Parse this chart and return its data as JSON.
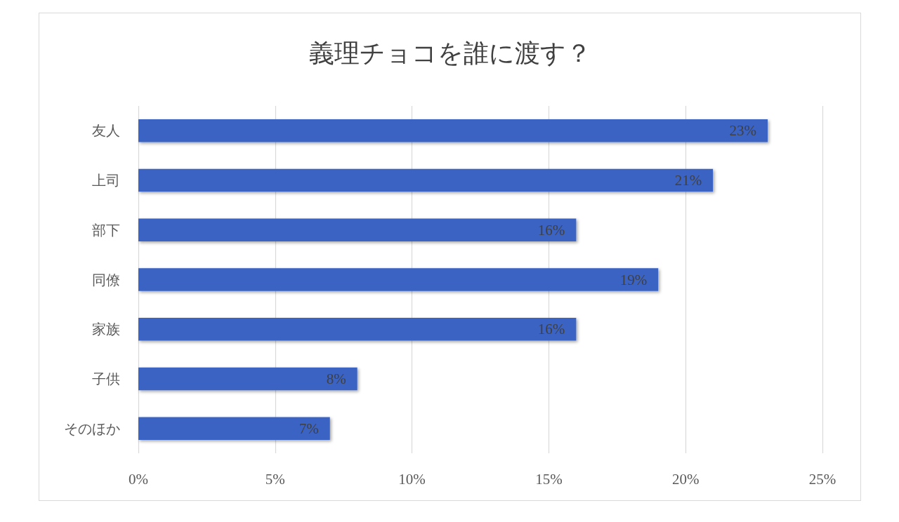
{
  "chart_data": {
    "type": "bar",
    "title": "義理チョコを誰に渡す？",
    "orientation": "horizontal",
    "categories": [
      "友人",
      "上司",
      "部下",
      "同僚",
      "家族",
      "子供",
      "そのほか"
    ],
    "values": [
      23,
      21,
      16,
      19,
      16,
      8,
      7
    ],
    "color": "#3a64c4",
    "value_labels": [
      "23%",
      "21%",
      "16%",
      "19%",
      "16%",
      "8%",
      "7%"
    ],
    "xlim": [
      0,
      25
    ],
    "xticks": [
      {
        "value": 0,
        "label": "0%"
      },
      {
        "value": 5,
        "label": "5%"
      },
      {
        "value": 10,
        "label": "10%"
      },
      {
        "value": 15,
        "label": "15%"
      },
      {
        "value": 20,
        "label": "20%"
      },
      {
        "value": 25,
        "label": "25%"
      }
    ],
    "grid": "x"
  }
}
